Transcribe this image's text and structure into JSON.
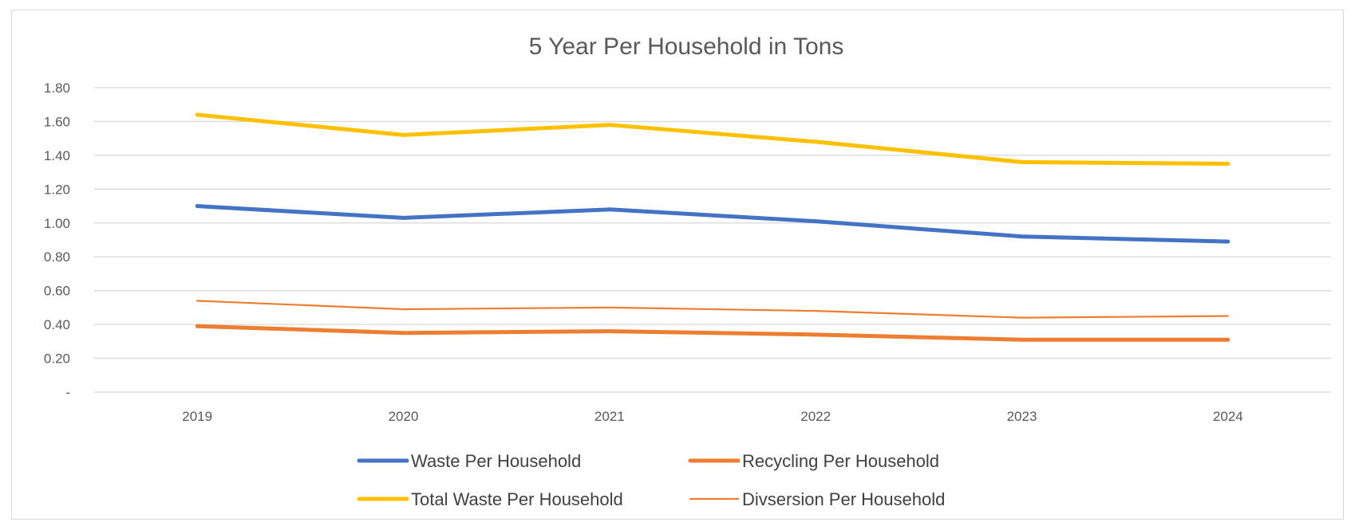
{
  "chart_data": {
    "type": "line",
    "title": "5 Year Per Household in Tons",
    "xlabel": "",
    "ylabel": "",
    "categories": [
      "2019",
      "2020",
      "2021",
      "2022",
      "2023",
      "2024"
    ],
    "ylim": [
      0,
      1.8
    ],
    "y_ticks": [
      {
        "value": 0,
        "label": "-"
      },
      {
        "value": 0.2,
        "label": "0.20"
      },
      {
        "value": 0.4,
        "label": "0.40"
      },
      {
        "value": 0.6,
        "label": "0.60"
      },
      {
        "value": 0.8,
        "label": "0.80"
      },
      {
        "value": 1.0,
        "label": "1.00"
      },
      {
        "value": 1.2,
        "label": "1.20"
      },
      {
        "value": 1.4,
        "label": "1.40"
      },
      {
        "value": 1.6,
        "label": "1.60"
      },
      {
        "value": 1.8,
        "label": "1.80"
      }
    ],
    "grid": true,
    "legend_position": "bottom",
    "series": [
      {
        "name": "Waste Per Household",
        "color": "#4472C4",
        "weight": "thick",
        "values": [
          1.1,
          1.03,
          1.08,
          1.01,
          0.92,
          0.89
        ]
      },
      {
        "name": "Recycling Per Household",
        "color": "#ED7D31",
        "weight": "thick",
        "values": [
          0.39,
          0.35,
          0.36,
          0.34,
          0.31,
          0.31
        ]
      },
      {
        "name": "Total Waste Per Household",
        "color": "#FFC000",
        "weight": "thick",
        "values": [
          1.64,
          1.52,
          1.58,
          1.48,
          1.36,
          1.35
        ]
      },
      {
        "name": "Divsersion Per Household",
        "color": "#ED7D31",
        "weight": "thin",
        "values": [
          0.54,
          0.49,
          0.5,
          0.48,
          0.44,
          0.45
        ]
      }
    ]
  }
}
